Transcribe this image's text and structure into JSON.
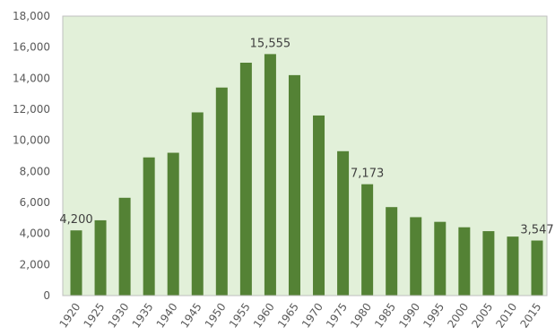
{
  "chart_data": {
    "type": "bar",
    "title": "",
    "xlabel": "",
    "ylabel": "",
    "categories": [
      "1920",
      "1925",
      "1930",
      "1935",
      "1940",
      "1945",
      "1950",
      "1955",
      "1960",
      "1965",
      "1970",
      "1975",
      "1980",
      "1985",
      "1990",
      "1995",
      "2000",
      "2005",
      "2010",
      "2015"
    ],
    "values": [
      4200,
      4850,
      6300,
      8900,
      9200,
      11800,
      13400,
      15000,
      15555,
      14200,
      11600,
      9300,
      7173,
      5700,
      5050,
      4750,
      4400,
      4150,
      3800,
      3547
    ],
    "data_labels": [
      {
        "index": 0,
        "text": "4,200"
      },
      {
        "index": 8,
        "text": "15,555"
      },
      {
        "index": 12,
        "text": "7,173"
      },
      {
        "index": 19,
        "text": "3,547"
      }
    ],
    "ylim": [
      0,
      18000
    ],
    "yticks": [
      0,
      2000,
      4000,
      6000,
      8000,
      10000,
      12000,
      14000,
      16000,
      18000
    ],
    "ytick_labels": [
      "0",
      "2,000",
      "4,000",
      "6,000",
      "8,000",
      "10,000",
      "12,000",
      "14,000",
      "16,000",
      "18,000"
    ],
    "grid": false,
    "legend": "none",
    "colors": {
      "bar": "#548235",
      "plot_background": "#e2f0d9",
      "axis": "#bfbfbf",
      "text": "#595959"
    }
  }
}
